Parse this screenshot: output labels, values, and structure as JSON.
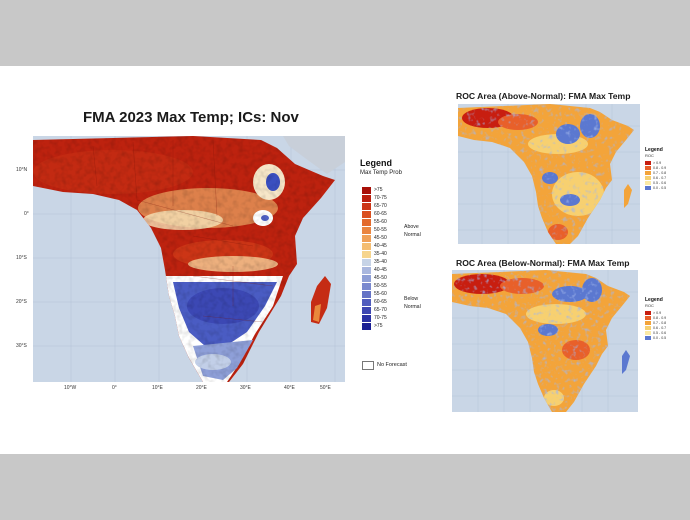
{
  "main": {
    "title": "FMA 2023 Max Temp; ICs: Nov",
    "lat_ticks": [
      "10°N",
      "0°",
      "10°S",
      "20°S",
      "30°S"
    ],
    "lon_ticks": [
      "10°W",
      "0°",
      "10°E",
      "20°E",
      "30°E",
      "40°E",
      "50°E"
    ],
    "legend": {
      "title": "Legend",
      "subtitle": "Max Temp Prob",
      "items": [
        {
          "label": ">75",
          "color": "#a80f08"
        },
        {
          "label": "70-75",
          "color": "#bb1e0e"
        },
        {
          "label": "65-70",
          "color": "#cc3516"
        },
        {
          "label": "60-65",
          "color": "#da4f1f"
        },
        {
          "label": "55-60",
          "color": "#e36a2c"
        },
        {
          "label": "50-55",
          "color": "#ea8540"
        },
        {
          "label": "45-50",
          "color": "#f0a158"
        },
        {
          "label": "40-45",
          "color": "#f4bd72"
        },
        {
          "label": "35-40",
          "color": "#f6d58e"
        },
        {
          "label": "35-40",
          "color": "#c6d3e6"
        },
        {
          "label": "40-45",
          "color": "#a9b7de"
        },
        {
          "label": "45-50",
          "color": "#8f9fd6"
        },
        {
          "label": "50-55",
          "color": "#7a89cf"
        },
        {
          "label": "55-60",
          "color": "#6573c6"
        },
        {
          "label": "60-65",
          "color": "#505cbd"
        },
        {
          "label": "65-70",
          "color": "#3d46b1"
        },
        {
          "label": "70-75",
          "color": "#2b31a4"
        },
        {
          "label": ">75",
          "color": "#1a1f94"
        }
      ],
      "above_label": "Above",
      "below_label": "Below",
      "normal_label": "Normal",
      "no_forecast": "No Forecast"
    }
  },
  "roc_above": {
    "title": "ROC Area (Above-Normal): FMA Max Temp",
    "legend_title": "Legend",
    "legend_sub": "ROC",
    "items": [
      {
        "label": "> 0.9",
        "color": "#c81e10"
      },
      {
        "label": "0.8 - 0.9",
        "color": "#e8602a"
      },
      {
        "label": "0.7 - 0.8",
        "color": "#f3a43a"
      },
      {
        "label": "0.6 - 0.7",
        "color": "#f7d070"
      },
      {
        "label": "0.5 - 0.6",
        "color": "#fbeaa6"
      },
      {
        "label": "0.0 - 0.5",
        "color": "#5b78d0"
      }
    ]
  },
  "roc_below": {
    "title": "ROC Area (Below-Normal): FMA Max Temp",
    "legend_title": "Legend",
    "legend_sub": "ROC",
    "items": [
      {
        "label": "> 0.9",
        "color": "#c81e10"
      },
      {
        "label": "0.8 - 0.9",
        "color": "#e8602a"
      },
      {
        "label": "0.7 - 0.8",
        "color": "#f3a43a"
      },
      {
        "label": "0.6 - 0.7",
        "color": "#f7d070"
      },
      {
        "label": "0.5 - 0.6",
        "color": "#fbeaa6"
      },
      {
        "label": "0.0 - 0.5",
        "color": "#5b78d0"
      }
    ]
  },
  "colors": {
    "ocean": "#c9d6e6",
    "frame_bg": "#c8c8c8",
    "warm_dark": "#b8190c",
    "cool_dark": "#3a4fc0"
  }
}
